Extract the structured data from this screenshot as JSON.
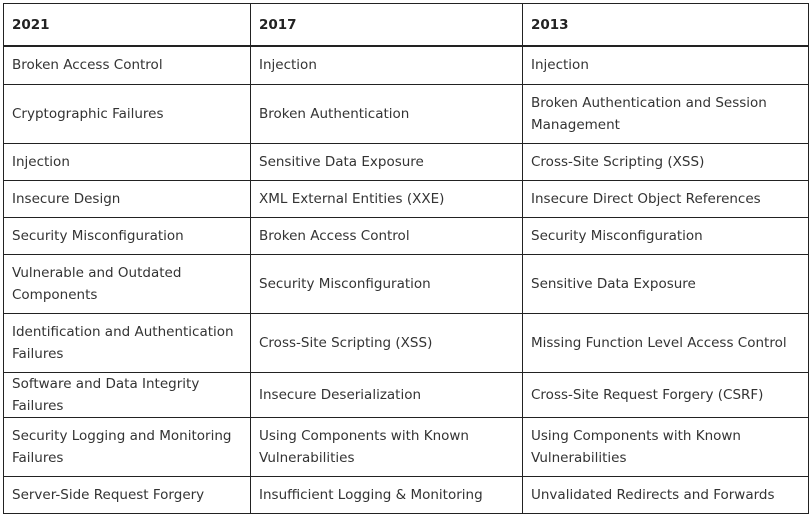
{
  "table": {
    "header": [
      "2021",
      "2017",
      "2013"
    ],
    "rows": [
      [
        "Broken Access Control",
        "Injection",
        "Injection"
      ],
      [
        "Cryptographic Failures",
        "Broken Authentication",
        "Broken Authentication and Session Management"
      ],
      [
        "Injection",
        "Sensitive Data Exposure",
        "Cross-Site Scripting (XSS)"
      ],
      [
        "Insecure Design",
        "XML External Entities (XXE)",
        "Insecure Direct Object References"
      ],
      [
        "Security Misconfiguration",
        "Broken Access Control",
        "Security Misconfiguration"
      ],
      [
        "Vulnerable and Outdated Components",
        "Security Misconfiguration",
        "Sensitive Data Exposure"
      ],
      [
        "Identification and Authentication Failures",
        "Cross-Site Scripting (XSS)",
        "Missing Function Level Access Control"
      ],
      [
        "Software and Data Integrity Failures",
        "Insecure Deserialization",
        "Cross-Site Request Forgery (CSRF)"
      ],
      [
        "Security Logging and Monitoring Failures",
        "Using Components with Known Vulnerabilities",
        "Using Components with Known Vulnerabilities"
      ],
      [
        "Server-Side Request Forgery",
        "Insufficient Logging & Monitoring",
        "Unvalidated Redirects and Forwards"
      ]
    ]
  }
}
